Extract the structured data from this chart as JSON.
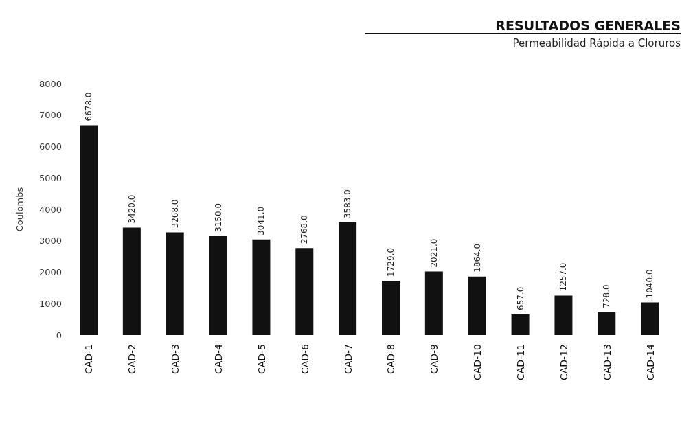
{
  "chart_data": {
    "type": "bar",
    "title": "RESULTADOS GENERALES",
    "subtitle": "Permeabilidad Rápida a Cloruros",
    "ylabel": "Coulombs",
    "categories": [
      "CAD-1",
      "CAD-2",
      "CAD-3",
      "CAD-4",
      "CAD-5",
      "CAD-6",
      "CAD-7",
      "CAD-8",
      "CAD-9",
      "CAD-10",
      "CAD-11",
      "CAD-12",
      "CAD-13",
      "CAD-14"
    ],
    "values": [
      6678,
      3420,
      3268,
      3150,
      3041,
      2768,
      3583,
      1729,
      2021,
      1864,
      657,
      1257,
      728,
      1040
    ],
    "value_labels": [
      "6678.0",
      "3420.0",
      "3268.0",
      "3150.0",
      "3041.0",
      "2768.0",
      "3583.0",
      "1729.0",
      "2021.0",
      "1864.0",
      "657.0",
      "1257.0",
      "728.0",
      "1040.0"
    ],
    "color": "#111111",
    "ylim": [
      0,
      8000
    ],
    "yticks": [
      0,
      1000,
      2000,
      3000,
      4000,
      5000,
      6000,
      7000,
      8000
    ]
  }
}
